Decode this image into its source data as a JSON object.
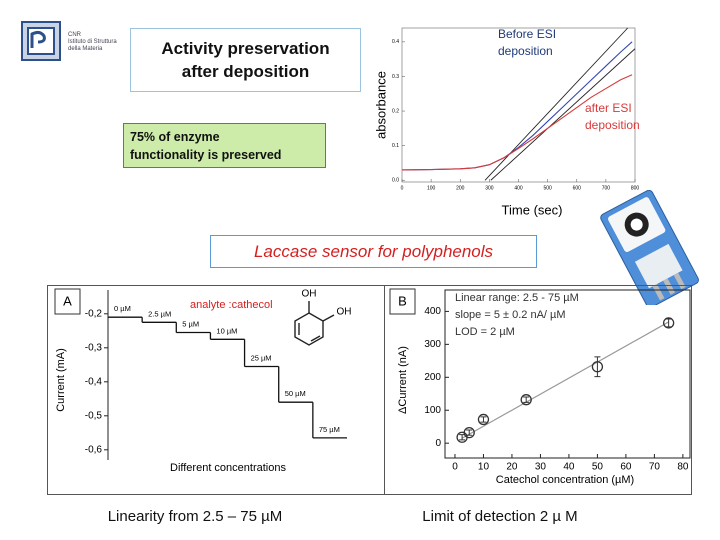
{
  "logo": {
    "lines": [
      "CNR",
      "Istituto di Struttura",
      "della Materia"
    ]
  },
  "title": [
    "Activity preservation",
    "after deposition"
  ],
  "highlight": [
    "75%  of  enzyme",
    "functionality is preserved"
  ],
  "banner": "Laccase sensor for polyphenols",
  "captions": [
    "Linearity from 2.5 – 75 µM",
    "Limit of detection 2 µ M"
  ],
  "chart_data": [
    {
      "type": "line",
      "x_label": "Time (sec)",
      "y_label": "absorbance",
      "x": [
        0,
        100,
        200,
        250,
        300,
        350,
        400,
        450,
        500,
        550,
        600,
        650,
        700,
        750,
        790
      ],
      "series": [
        {
          "name": "Before ESI deposition",
          "color": "#3347b0",
          "values": [
            0.03,
            0.031,
            0.033,
            0.036,
            0.045,
            0.065,
            0.095,
            0.13,
            0.17,
            0.21,
            0.25,
            0.29,
            0.33,
            0.37,
            0.4
          ]
        },
        {
          "name": "after ESI deposition",
          "color": "#d83a3a",
          "values": [
            0.03,
            0.031,
            0.033,
            0.036,
            0.045,
            0.065,
            0.092,
            0.12,
            0.15,
            0.18,
            0.21,
            0.24,
            0.265,
            0.29,
            0.305
          ]
        }
      ],
      "tangents": [
        {
          "x": [
            285,
            775
          ],
          "y": [
            0,
            0.44
          ]
        },
        {
          "x": [
            305,
            800
          ],
          "y": [
            0,
            0.38
          ]
        }
      ],
      "xlim": [
        0,
        800
      ],
      "ylim": [
        -0.005,
        0.44
      ],
      "xticks": [
        0,
        100,
        200,
        300,
        400,
        500,
        600,
        700,
        800
      ],
      "yticks": [
        {
          "value": 0,
          "label": "0.0"
        },
        {
          "value": 0.1,
          "label": "0.1"
        },
        {
          "value": 0.2,
          "label": "0.2"
        },
        {
          "value": 0.3,
          "label": "0.3"
        },
        {
          "value": 0.4,
          "label": "0.4"
        }
      ]
    },
    {
      "type": "step",
      "panel": "A",
      "annotation": "analyte :cathecol",
      "molecule_labels": [
        "OH",
        "OH"
      ],
      "x_label": "Different concentrations",
      "y_label": "Current (mA)",
      "categories": [
        "0 µM",
        "2.5 µM",
        "5 µM",
        "10 µM",
        "25 µM",
        "50 µM",
        "75 µM"
      ],
      "values": [
        -0.21,
        -0.225,
        -0.255,
        -0.275,
        -0.355,
        -0.46,
        -0.565
      ],
      "color": "#111111",
      "ylim": [
        -0.63,
        -0.13
      ],
      "yticks": [
        {
          "value": -0.2,
          "label": "-0,2"
        },
        {
          "value": -0.3,
          "label": "-0,3"
        },
        {
          "value": -0.4,
          "label": "-0,4"
        },
        {
          "value": -0.5,
          "label": "-0,5"
        },
        {
          "value": -0.6,
          "label": "-0,6"
        }
      ]
    },
    {
      "type": "scatter",
      "panel": "B",
      "notes": [
        "Linear range: 2.5 - 75 µM",
        "slope = 5 ± 0.2 nA/ µM",
        "LOD = 2 µM"
      ],
      "x_label": "Catechol concentration (µM)",
      "y_label": "ΔCurrent (nA)",
      "x": [
        2.5,
        5,
        10,
        25,
        50,
        75
      ],
      "values": [
        18,
        32,
        72,
        132,
        232,
        365
      ],
      "errors": [
        8,
        8,
        8,
        8,
        30,
        12
      ],
      "fit": {
        "x": [
          2.5,
          75
        ],
        "y": [
          15,
          368
        ]
      },
      "color": "#333333",
      "xlim": [
        -3.5,
        82.5
      ],
      "ylim": [
        -45,
        465
      ],
      "xticks": [
        0,
        10,
        20,
        30,
        40,
        50,
        60,
        70,
        80
      ],
      "yticks": [
        0,
        100,
        200,
        300,
        400
      ]
    }
  ]
}
